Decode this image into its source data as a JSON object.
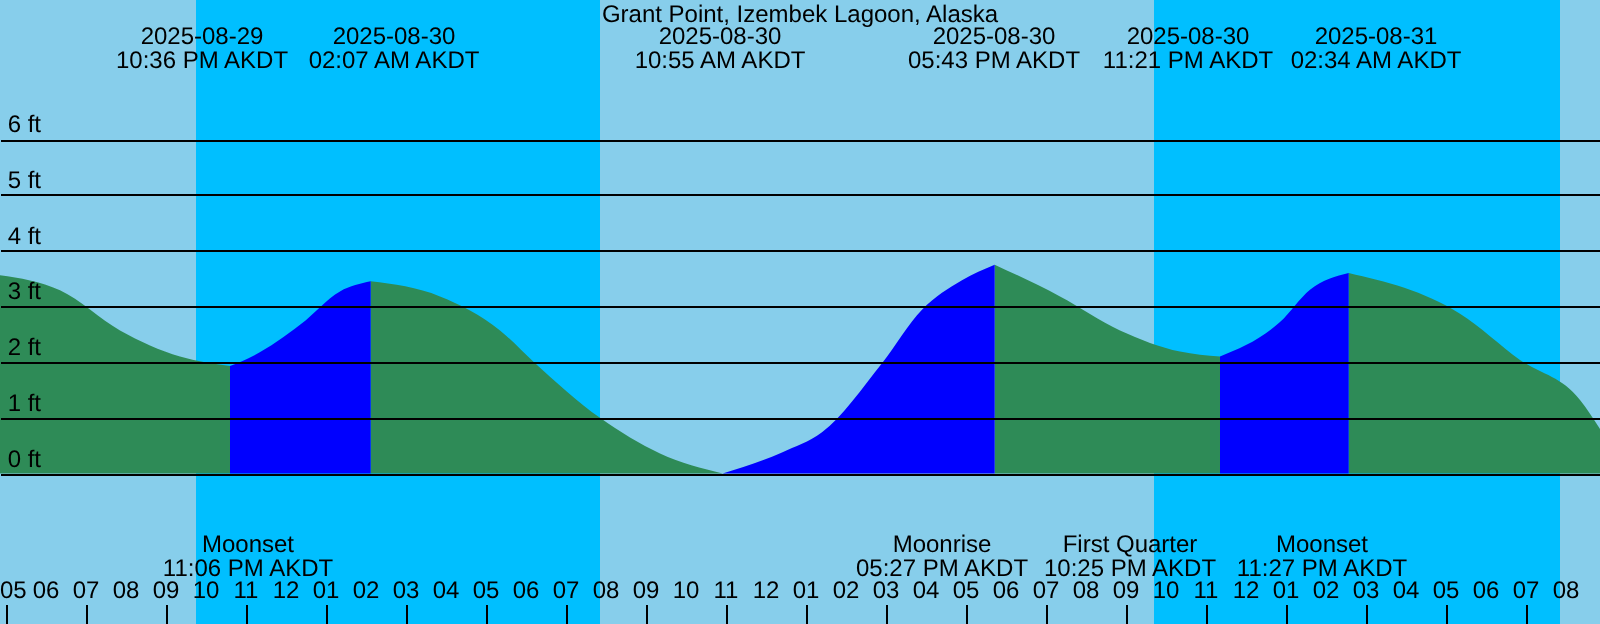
{
  "chart_data": {
    "type": "area",
    "title": "Grant Point, Izembek Lagoon, Alaska",
    "x": [
      "2025-08-29T16:51",
      "2025-08-29T18:21",
      "2025-08-29T19:51",
      "2025-08-29T21:21",
      "2025-08-29T22:36",
      "2025-08-29T23:12",
      "2025-08-30T00:22",
      "2025-08-30T01:21",
      "2025-08-30T02:07",
      "2025-08-30T03:51",
      "2025-08-30T05:21",
      "2025-08-30T06:12",
      "2025-08-30T07:51",
      "2025-08-30T09:21",
      "2025-08-30T10:55",
      "2025-08-30T12:24",
      "2025-08-30T13:24",
      "2025-08-30T14:54",
      "2025-08-30T15:54",
      "2025-08-30T16:54",
      "2025-08-30T17:43",
      "2025-08-30T19:21",
      "2025-08-30T20:51",
      "2025-08-30T22:21",
      "2025-08-30T23:21",
      "2025-08-31T00:51",
      "2025-08-31T01:36",
      "2025-08-31T02:34",
      "2025-08-31T05:21",
      "2025-08-31T06:51",
      "2025-08-31T08:21",
      "2025-08-31T08:51"
    ],
    "series": [
      {
        "color": "#2e8b57",
        "values": [
          3.56,
          3.29,
          2.57,
          2.1,
          1.93,
          null,
          null,
          null,
          3.45,
          3.18,
          2.57,
          2.0,
          1.0,
          0.36,
          0.0,
          null,
          null,
          null,
          null,
          null,
          3.75,
          3.18,
          2.57,
          2.19,
          2.1,
          null,
          null,
          3.6,
          2.87,
          2.04,
          1.32,
          0.8
        ]
      },
      {
        "color": "#0000ff",
        "values": [
          null,
          null,
          null,
          null,
          1.93,
          2.12,
          2.68,
          3.27,
          3.45,
          null,
          null,
          null,
          null,
          null,
          0.0,
          0.38,
          0.74,
          1.98,
          2.94,
          3.47,
          3.75,
          null,
          null,
          null,
          2.1,
          2.72,
          3.3,
          3.6,
          null,
          null,
          null,
          null
        ]
      }
    ],
    "xlim": [
      "2025-08-29T16:51",
      "2025-08-31T08:51"
    ],
    "xticks": [
      {
        "value": "2025-08-29T17:00",
        "label": "05"
      },
      {
        "value": "2025-08-29T18:00",
        "label": "06"
      },
      {
        "value": "2025-08-29T19:00",
        "label": "07"
      },
      {
        "value": "2025-08-29T20:00",
        "label": "08"
      },
      {
        "value": "2025-08-29T21:00",
        "label": "09"
      },
      {
        "value": "2025-08-29T22:00",
        "label": "10"
      },
      {
        "value": "2025-08-29T23:00",
        "label": "11"
      },
      {
        "value": "2025-08-30T00:00",
        "label": "12"
      },
      {
        "value": "2025-08-30T01:00",
        "label": "01"
      },
      {
        "value": "2025-08-30T02:00",
        "label": "02"
      },
      {
        "value": "2025-08-30T03:00",
        "label": "03"
      },
      {
        "value": "2025-08-30T04:00",
        "label": "04"
      },
      {
        "value": "2025-08-30T05:00",
        "label": "05"
      },
      {
        "value": "2025-08-30T06:00",
        "label": "06"
      },
      {
        "value": "2025-08-30T07:00",
        "label": "07"
      },
      {
        "value": "2025-08-30T08:00",
        "label": "08"
      },
      {
        "value": "2025-08-30T09:00",
        "label": "09"
      },
      {
        "value": "2025-08-30T10:00",
        "label": "10"
      },
      {
        "value": "2025-08-30T11:00",
        "label": "11"
      },
      {
        "value": "2025-08-30T12:00",
        "label": "12"
      },
      {
        "value": "2025-08-30T13:00",
        "label": "01"
      },
      {
        "value": "2025-08-30T14:00",
        "label": "02"
      },
      {
        "value": "2025-08-30T15:00",
        "label": "03"
      },
      {
        "value": "2025-08-30T16:00",
        "label": "04"
      },
      {
        "value": "2025-08-30T17:00",
        "label": "05"
      },
      {
        "value": "2025-08-30T18:00",
        "label": "06"
      },
      {
        "value": "2025-08-30T19:00",
        "label": "07"
      },
      {
        "value": "2025-08-30T20:00",
        "label": "08"
      },
      {
        "value": "2025-08-30T21:00",
        "label": "09"
      },
      {
        "value": "2025-08-30T22:00",
        "label": "10"
      },
      {
        "value": "2025-08-30T23:00",
        "label": "11"
      },
      {
        "value": "2025-08-31T00:00",
        "label": "12"
      },
      {
        "value": "2025-08-31T01:00",
        "label": "01"
      },
      {
        "value": "2025-08-31T02:00",
        "label": "02"
      },
      {
        "value": "2025-08-31T03:00",
        "label": "03"
      },
      {
        "value": "2025-08-31T04:00",
        "label": "04"
      },
      {
        "value": "2025-08-31T05:00",
        "label": "05"
      },
      {
        "value": "2025-08-31T06:00",
        "label": "06"
      },
      {
        "value": "2025-08-31T07:00",
        "label": "07"
      },
      {
        "value": "2025-08-31T08:00",
        "label": "08"
      }
    ],
    "ylim": [
      -2.7,
      8.5
    ],
    "yticks": [
      {
        "value": 0,
        "label": "0 ft"
      },
      {
        "value": 1,
        "label": "1 ft"
      },
      {
        "value": 2,
        "label": "2 ft"
      },
      {
        "value": 3,
        "label": "3 ft"
      },
      {
        "value": 4,
        "label": "4 ft"
      },
      {
        "value": 5,
        "label": "5 ft"
      },
      {
        "value": 6,
        "label": "6 ft"
      }
    ],
    "grid": "y",
    "bands": [
      {
        "axis": "x",
        "from": "2025-08-29T16:51",
        "to": "2025-08-29T21:45",
        "color": "#87ceeb"
      },
      {
        "axis": "x",
        "from": "2025-08-29T21:45",
        "to": "2025-08-30T07:51",
        "color": "#00bfff"
      },
      {
        "axis": "x",
        "from": "2025-08-30T07:51",
        "to": "2025-08-30T21:42",
        "color": "#87ceeb"
      },
      {
        "axis": "x",
        "from": "2025-08-30T21:42",
        "to": "2025-08-31T07:51",
        "color": "#00bfff"
      },
      {
        "axis": "x",
        "from": "2025-08-31T07:51",
        "to": "2025-08-31T08:51",
        "color": "#87ceeb"
      }
    ],
    "annotations": [
      "2025-08-29\n10:36 PM AKDT",
      "2025-08-30\n02:07 AM AKDT",
      "2025-08-30\n10:55 AM AKDT",
      "2025-08-30\n05:43 PM AKDT",
      "2025-08-30\n11:21 PM AKDT",
      "2025-08-31\n02:34 AM AKDT",
      "Moonset\n11:06 PM AKDT",
      "Moonrise\n05:27 PM AKDT",
      "First Quarter\n10:25 PM AKDT",
      "Moonset\n11:27 PM AKDT"
    ]
  }
}
